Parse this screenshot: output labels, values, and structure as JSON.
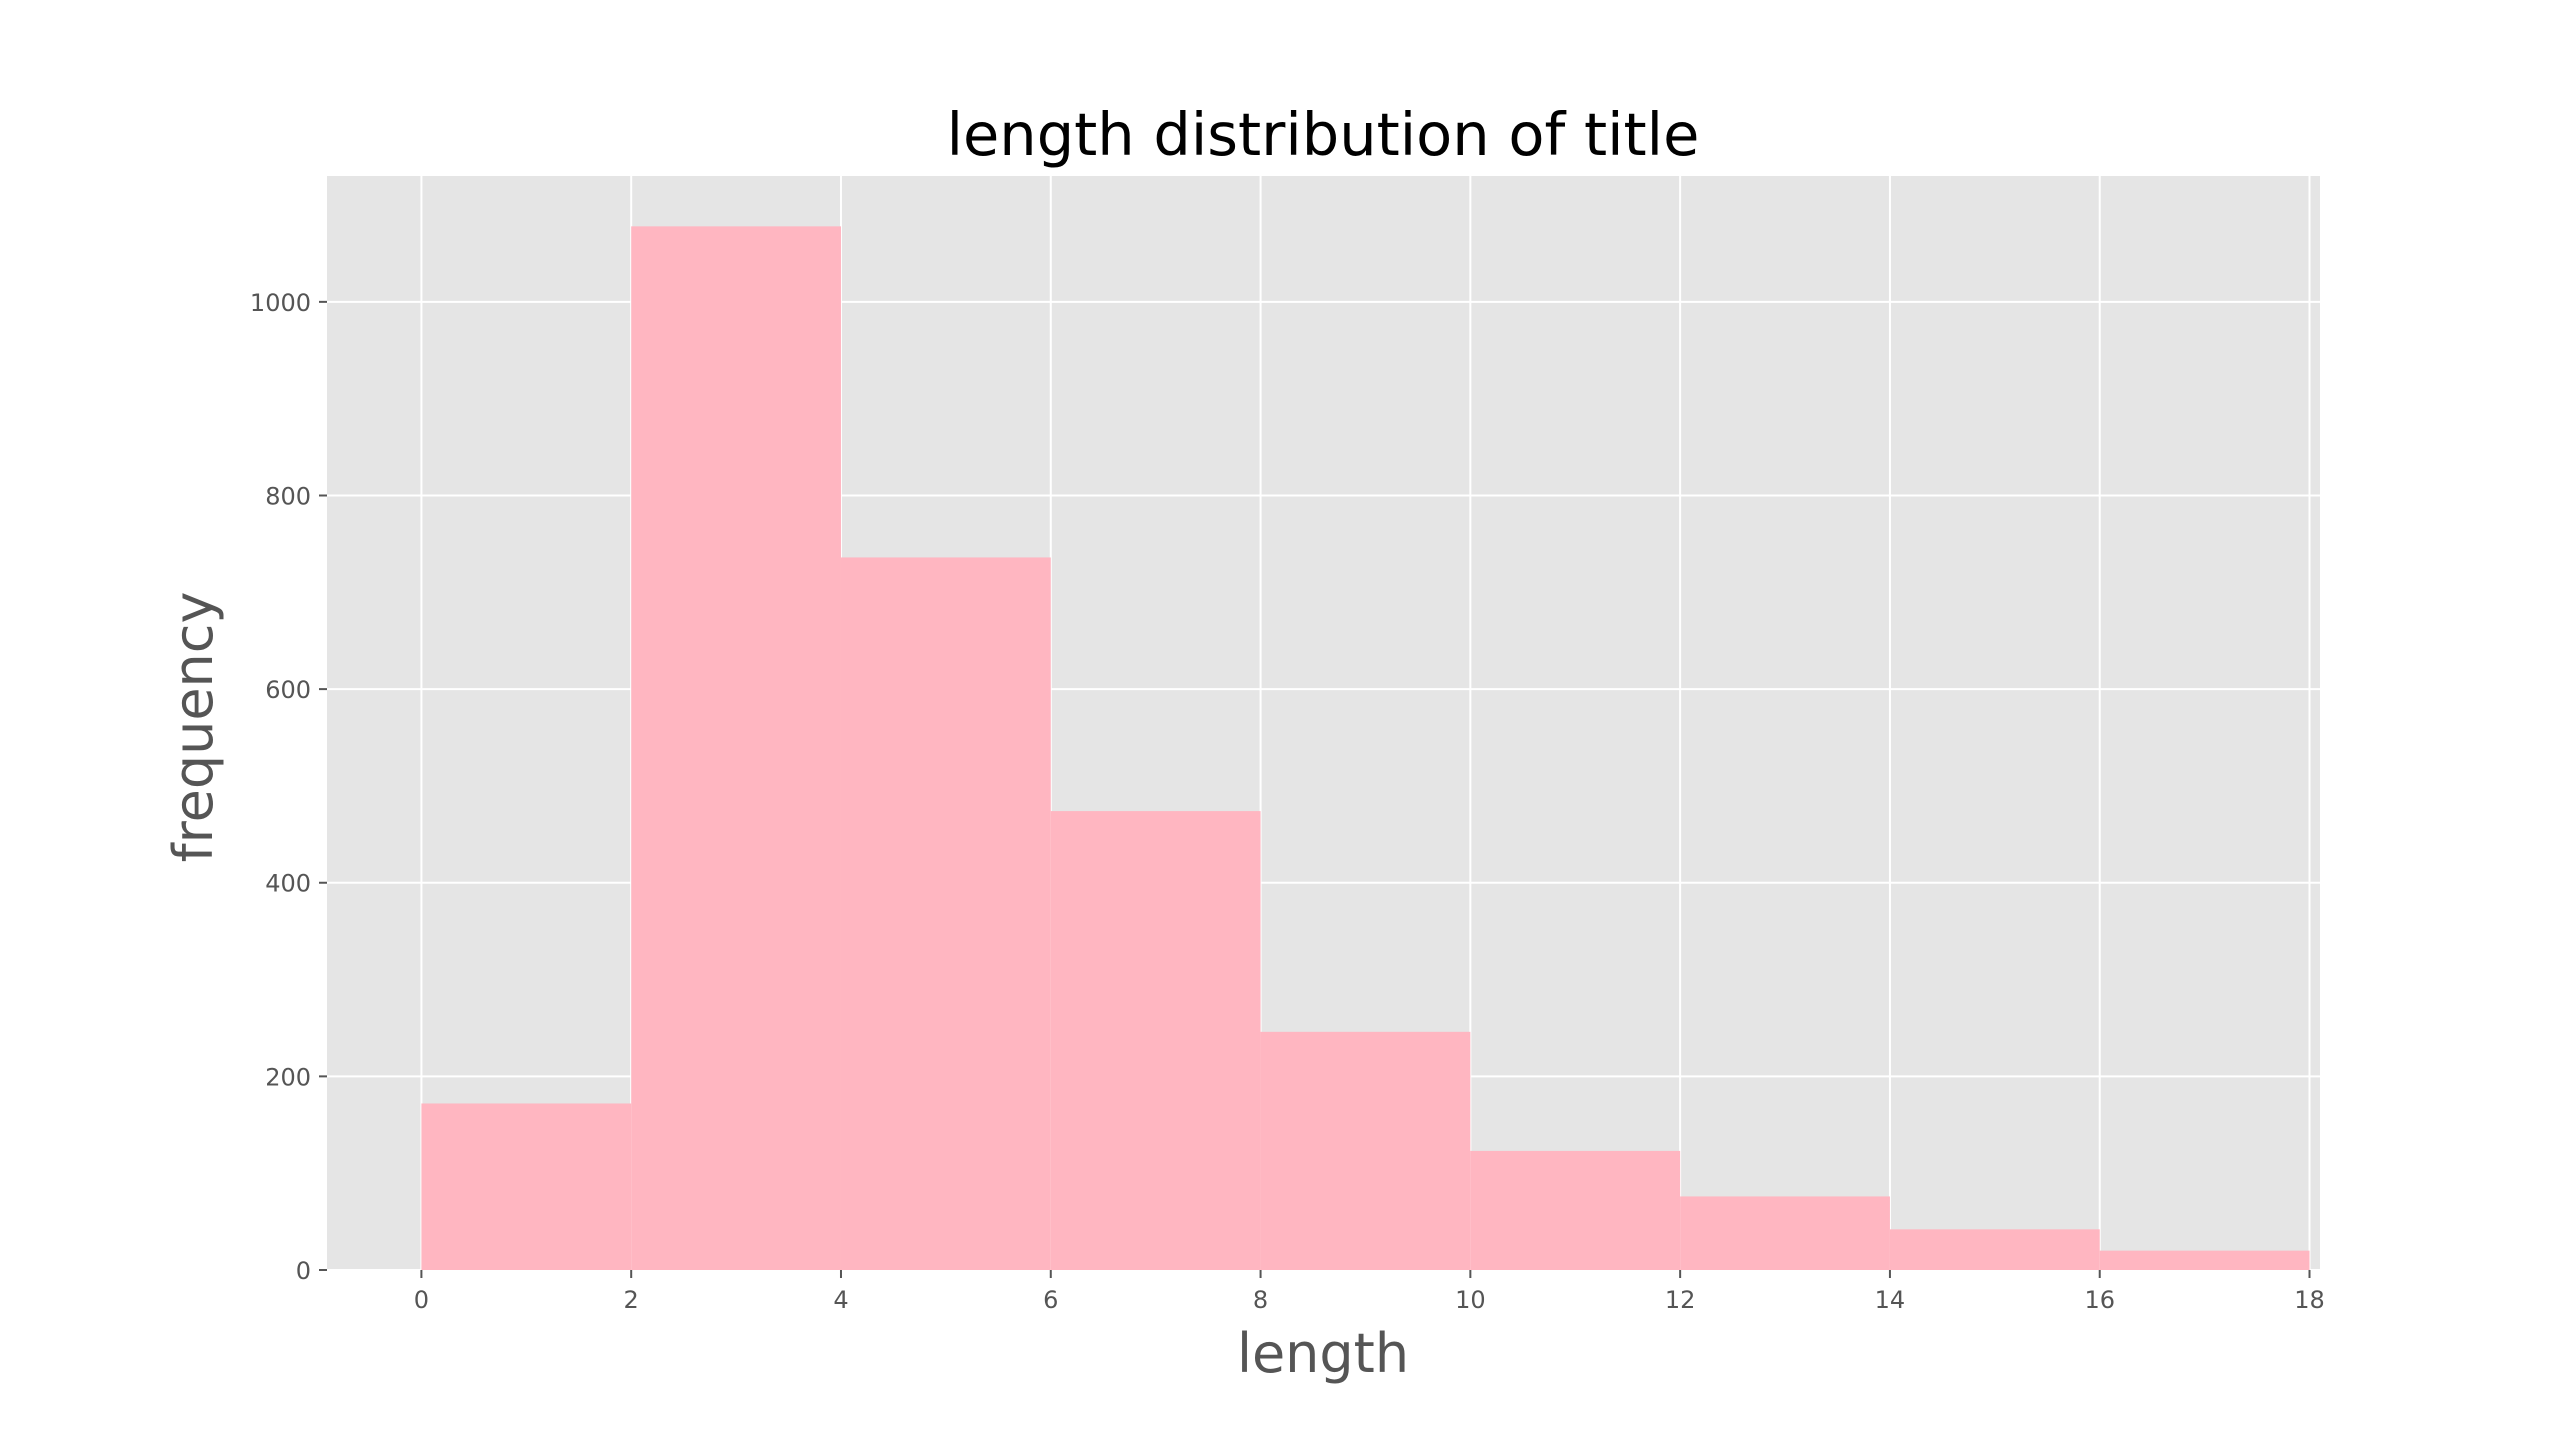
{
  "chart_data": {
    "type": "bar",
    "title": "length distribution of title",
    "xlabel": "length",
    "ylabel": "frequency",
    "bins": [
      {
        "start": 0,
        "end": 2,
        "value": 172
      },
      {
        "start": 2,
        "end": 4,
        "value": 1078
      },
      {
        "start": 4,
        "end": 6,
        "value": 736
      },
      {
        "start": 6,
        "end": 8,
        "value": 474
      },
      {
        "start": 8,
        "end": 10,
        "value": 246
      },
      {
        "start": 10,
        "end": 12,
        "value": 123
      },
      {
        "start": 12,
        "end": 14,
        "value": 76
      },
      {
        "start": 14,
        "end": 16,
        "value": 42
      },
      {
        "start": 16,
        "end": 18,
        "value": 20
      }
    ],
    "xticks": [
      0,
      2,
      4,
      6,
      8,
      10,
      12,
      14,
      16,
      18
    ],
    "yticks": [
      0,
      200,
      400,
      600,
      800,
      1000
    ],
    "xlim": [
      -0.9,
      18.1
    ],
    "ylim": [
      0,
      1130
    ],
    "grid": true,
    "colors": {
      "bar": "#ffb6c1",
      "background": "#e5e5e5",
      "grid": "#ffffff"
    }
  }
}
